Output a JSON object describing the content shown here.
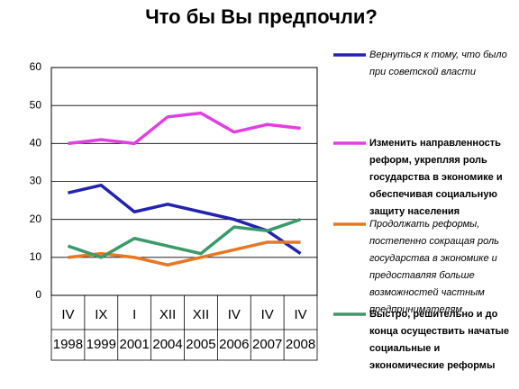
{
  "chart_data": {
    "type": "line",
    "title": "Что бы Вы предпочли?",
    "categories": [
      "IV",
      "IX",
      "I",
      "XII",
      "XII",
      "IV",
      "IV",
      "IV"
    ],
    "years": [
      "1998",
      "1999",
      "2001",
      "2004",
      "2005",
      "2006",
      "2007",
      "2008"
    ],
    "ylim": [
      0,
      60
    ],
    "yticks": [
      0,
      10,
      20,
      30,
      40,
      50,
      60
    ],
    "grid": true,
    "series": [
      {
        "name": "Вернуться к тому, что было при советской власти",
        "color": "#2323b0",
        "values": [
          27,
          29,
          22,
          24,
          22,
          20,
          17,
          11
        ]
      },
      {
        "name": "Изменить направленность реформ, укрепляя роль государства в экономике и обеспечивая социальную защиту населения",
        "color": "#e040e0",
        "values": [
          40,
          41,
          40,
          47,
          48,
          43,
          45,
          44
        ]
      },
      {
        "name": "Продолжать реформы, постепенно сокращая роль государства в экономике и предоставляя больше возможностей частным предпринимателям",
        "color": "#e87722",
        "values": [
          10,
          11,
          10,
          8,
          10,
          12,
          14,
          14
        ]
      },
      {
        "name": "Быстро, решительно и до конца осуществить начатые социальные и экономические реформы",
        "color": "#3a9a6a",
        "values": [
          13,
          10,
          15,
          13,
          11,
          18,
          17,
          20
        ]
      }
    ]
  }
}
